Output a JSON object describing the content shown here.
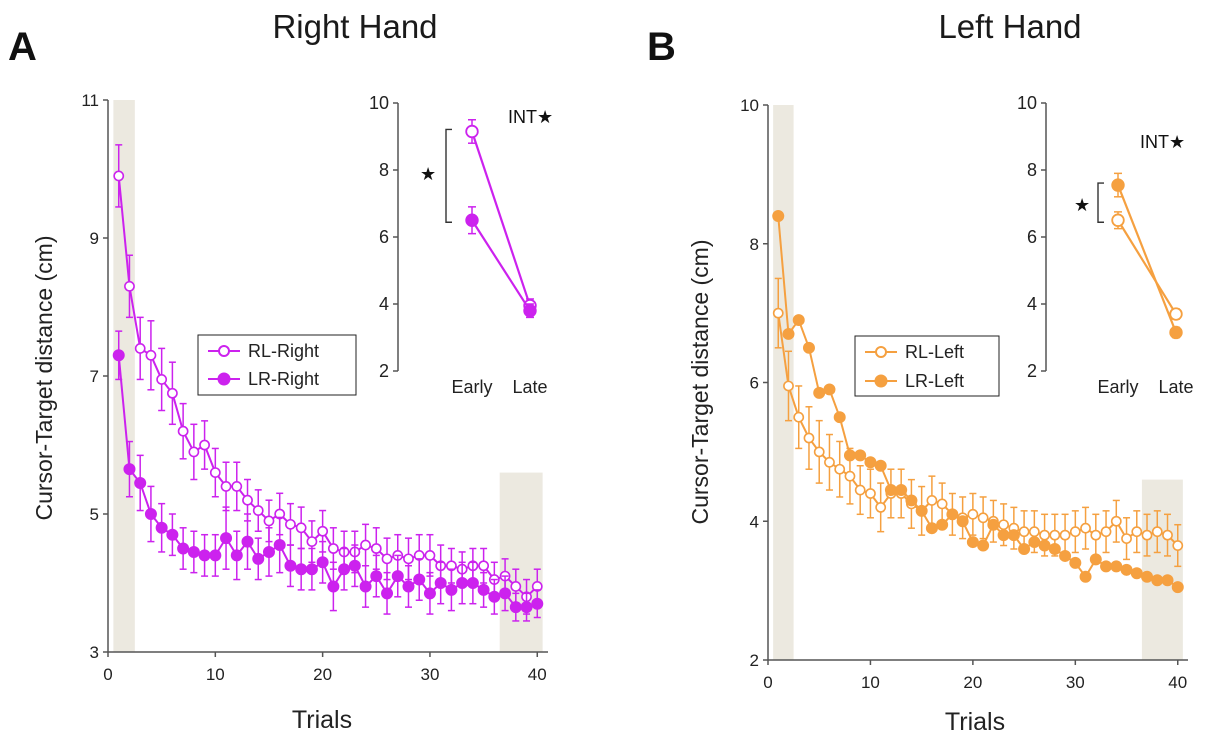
{
  "panels": [
    {
      "letter": "A",
      "title": "Right Hand"
    },
    {
      "letter": "B",
      "title": "Left Hand"
    }
  ],
  "colors": {
    "right": "#cc22ee",
    "left": "#f5a040",
    "shade": "#ece9e0",
    "axis": "#555555"
  },
  "chart_data": [
    {
      "type": "line",
      "title": "Right Hand",
      "xlabel": "Trials",
      "ylabel": "Cursor-Target distance (cm)",
      "xlim": [
        0,
        41
      ],
      "ylim": [
        3,
        11
      ],
      "xticks": [
        0,
        10,
        20,
        30,
        40
      ],
      "yticks": [
        3,
        5,
        7,
        9,
        11
      ],
      "shaded_trials": [
        [
          1,
          2
        ],
        [
          37,
          40
        ]
      ],
      "legend": {
        "position": "center",
        "entries": [
          "RL-Right",
          "LR-Right"
        ]
      },
      "x": [
        1,
        2,
        3,
        4,
        5,
        6,
        7,
        8,
        9,
        10,
        11,
        12,
        13,
        14,
        15,
        16,
        17,
        18,
        19,
        20,
        21,
        22,
        23,
        24,
        25,
        26,
        27,
        28,
        29,
        30,
        31,
        32,
        33,
        34,
        35,
        36,
        37,
        38,
        39,
        40
      ],
      "series": [
        {
          "name": "RL-Right",
          "marker": "open",
          "values": [
            9.9,
            8.3,
            7.4,
            7.3,
            6.95,
            6.75,
            6.2,
            5.9,
            6.0,
            5.6,
            5.4,
            5.4,
            5.2,
            5.05,
            4.9,
            5.0,
            4.85,
            4.8,
            4.6,
            4.75,
            4.5,
            4.45,
            4.45,
            4.55,
            4.5,
            4.35,
            4.4,
            4.35,
            4.4,
            4.4,
            4.25,
            4.25,
            4.2,
            4.25,
            4.25,
            4.05,
            4.1,
            3.95,
            3.8,
            3.95
          ],
          "errors": [
            0.45,
            0.45,
            0.45,
            0.5,
            0.45,
            0.45,
            0.4,
            0.4,
            0.35,
            0.35,
            0.35,
            0.35,
            0.3,
            0.3,
            0.3,
            0.3,
            0.3,
            0.3,
            0.3,
            0.3,
            0.3,
            0.3,
            0.3,
            0.3,
            0.3,
            0.3,
            0.3,
            0.3,
            0.3,
            0.3,
            0.3,
            0.25,
            0.25,
            0.25,
            0.25,
            0.25,
            0.25,
            0.25,
            0.25,
            0.25
          ]
        },
        {
          "name": "LR-Right",
          "marker": "filled",
          "values": [
            7.3,
            5.65,
            5.45,
            5.0,
            4.8,
            4.7,
            4.5,
            4.45,
            4.4,
            4.4,
            4.65,
            4.4,
            4.6,
            4.35,
            4.45,
            4.55,
            4.25,
            4.2,
            4.2,
            4.3,
            3.95,
            4.2,
            4.25,
            3.95,
            4.1,
            3.85,
            4.1,
            3.95,
            4.05,
            3.85,
            4.0,
            3.9,
            4.0,
            4.0,
            3.9,
            3.8,
            3.85,
            3.65,
            3.65,
            3.7
          ],
          "errors": [
            0.35,
            0.4,
            0.4,
            0.4,
            0.35,
            0.3,
            0.3,
            0.3,
            0.3,
            0.3,
            0.45,
            0.35,
            0.4,
            0.3,
            0.35,
            0.4,
            0.3,
            0.3,
            0.3,
            0.3,
            0.35,
            0.3,
            0.3,
            0.3,
            0.3,
            0.3,
            0.3,
            0.3,
            0.3,
            0.3,
            0.3,
            0.3,
            0.3,
            0.3,
            0.25,
            0.25,
            0.25,
            0.2,
            0.2,
            0.2
          ]
        }
      ],
      "inset": {
        "categories": [
          "Early",
          "Late"
        ],
        "ylim": [
          2,
          10
        ],
        "yticks": [
          2,
          4,
          6,
          8,
          10
        ],
        "annotation": "INT★",
        "significance": "★",
        "series": [
          {
            "name": "RL-Right",
            "values": [
              9.15,
              3.95
            ],
            "errors": [
              0.35,
              0.2
            ]
          },
          {
            "name": "LR-Right",
            "values": [
              6.5,
              3.8
            ],
            "errors": [
              0.4,
              0.2
            ]
          }
        ]
      }
    },
    {
      "type": "line",
      "title": "Left Hand",
      "xlabel": "Trials",
      "ylabel": "Cursor-Target distance (cm)",
      "xlim": [
        0,
        41
      ],
      "ylim": [
        2,
        10
      ],
      "xticks": [
        0,
        10,
        20,
        30,
        40
      ],
      "yticks": [
        2,
        4,
        6,
        8,
        10
      ],
      "shaded_trials": [
        [
          1,
          2
        ],
        [
          37,
          40
        ]
      ],
      "legend": {
        "position": "center",
        "entries": [
          "RL-Left",
          "LR-Left"
        ]
      },
      "x": [
        1,
        2,
        3,
        4,
        5,
        6,
        7,
        8,
        9,
        10,
        11,
        12,
        13,
        14,
        15,
        16,
        17,
        18,
        19,
        20,
        21,
        22,
        23,
        24,
        25,
        26,
        27,
        28,
        29,
        30,
        31,
        32,
        33,
        34,
        35,
        36,
        37,
        38,
        39,
        40
      ],
      "series": [
        {
          "name": "RL-Left",
          "marker": "open",
          "values": [
            7.0,
            5.95,
            5.5,
            5.2,
            5.0,
            4.85,
            4.75,
            4.65,
            4.45,
            4.4,
            4.2,
            4.4,
            4.4,
            4.25,
            4.15,
            4.3,
            4.25,
            4.1,
            4.05,
            4.1,
            4.05,
            4.0,
            3.95,
            3.9,
            3.85,
            3.85,
            3.8,
            3.8,
            3.8,
            3.85,
            3.9,
            3.8,
            3.85,
            4.0,
            3.75,
            3.85,
            3.8,
            3.85,
            3.8,
            3.65
          ],
          "errors": [
            0.5,
            0.5,
            0.45,
            0.45,
            0.45,
            0.4,
            0.4,
            0.4,
            0.35,
            0.35,
            0.35,
            0.35,
            0.35,
            0.35,
            0.35,
            0.35,
            0.3,
            0.3,
            0.3,
            0.3,
            0.3,
            0.3,
            0.3,
            0.3,
            0.3,
            0.3,
            0.3,
            0.3,
            0.3,
            0.3,
            0.3,
            0.3,
            0.3,
            0.3,
            0.3,
            0.3,
            0.3,
            0.3,
            0.3,
            0.3
          ]
        },
        {
          "name": "LR-Left",
          "marker": "filled",
          "values": [
            8.4,
            6.7,
            6.9,
            6.5,
            5.85,
            5.9,
            5.5,
            4.95,
            4.95,
            4.85,
            4.8,
            4.45,
            4.45,
            4.3,
            4.15,
            3.9,
            3.95,
            4.1,
            4.0,
            3.7,
            3.65,
            3.95,
            3.8,
            3.8,
            3.6,
            3.7,
            3.65,
            3.6,
            3.5,
            3.4,
            3.2,
            3.45,
            3.35,
            3.35,
            3.3,
            3.25,
            3.2,
            3.15,
            3.15,
            3.05
          ]
        }
      ],
      "inset": {
        "categories": [
          "Early",
          "Late"
        ],
        "ylim": [
          2,
          10
        ],
        "yticks": [
          2,
          4,
          6,
          8,
          10
        ],
        "annotation": "INT★",
        "significance": "★",
        "series": [
          {
            "name": "RL-Left",
            "values": [
              6.5,
              3.7
            ],
            "errors": [
              0.25,
              0.15
            ]
          },
          {
            "name": "LR-Left",
            "values": [
              7.55,
              3.15
            ],
            "errors": [
              0.35,
              0.15
            ]
          }
        ]
      }
    }
  ]
}
